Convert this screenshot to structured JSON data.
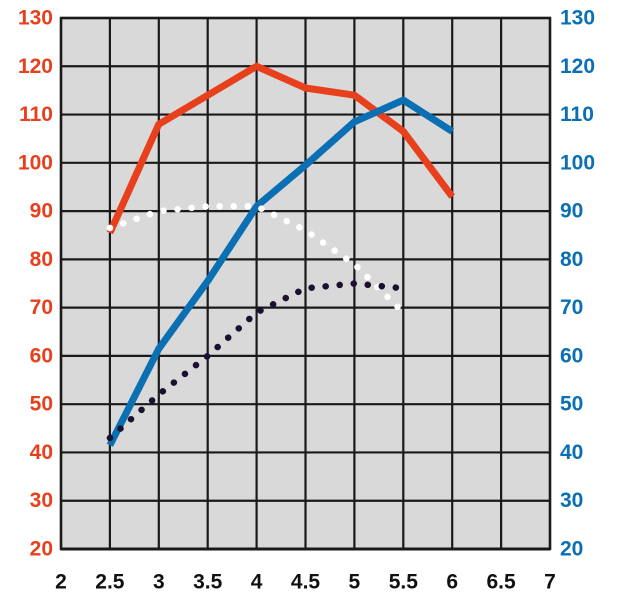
{
  "chart_data": {
    "type": "line",
    "title": "",
    "xlabel": "",
    "ylabel": "",
    "y2label": "",
    "grid": true,
    "legend": "none",
    "xlim": [
      2,
      7
    ],
    "ylim": [
      20,
      130
    ],
    "y2lim": [
      20,
      130
    ],
    "x_ticks": [
      "2",
      "2.5",
      "3",
      "3.5",
      "4",
      "4.5",
      "5",
      "5.5",
      "6",
      "6.5",
      "7"
    ],
    "y_ticks_left": [
      "20",
      "30",
      "40",
      "50",
      "60",
      "70",
      "80",
      "90",
      "100",
      "110",
      "120",
      "130"
    ],
    "y_ticks_right": [
      "20",
      "30",
      "40",
      "50",
      "60",
      "70",
      "80",
      "90",
      "100",
      "110",
      "120",
      "130"
    ],
    "colors": {
      "left_axis": "#e8401c",
      "right_axis": "#0a6fb3",
      "plot_background": "#d9d9d9",
      "grid": "#1a1a1a",
      "x_axis_text": "#111111"
    },
    "series": [
      {
        "style": "solid",
        "color": "#e8401c",
        "axis": "left",
        "x": [
          2.5,
          3,
          3.5,
          4,
          4.5,
          5,
          5.5,
          6
        ],
        "y": [
          85.5,
          108,
          114,
          120,
          115.5,
          114,
          106.5,
          93
        ]
      },
      {
        "style": "solid",
        "color": "#0a6fb3",
        "axis": "right",
        "x": [
          2.5,
          3,
          3.5,
          4,
          4.5,
          5,
          5.5,
          6
        ],
        "y": [
          41.5,
          61.5,
          75.5,
          91,
          99.5,
          108.5,
          113,
          106.5
        ]
      },
      {
        "style": "dotted",
        "color": "#ffffff",
        "axis": "left",
        "x": [
          2.5,
          3,
          3.5,
          4,
          4.5,
          5,
          5.5
        ],
        "y": [
          86.5,
          90,
          91,
          91,
          86,
          79,
          69
        ]
      },
      {
        "style": "dotted",
        "color": "#1b1030",
        "axis": "left",
        "x": [
          2.5,
          3,
          3.5,
          4,
          4.5,
          5,
          5.5
        ],
        "y": [
          43,
          52,
          60,
          69,
          74,
          75,
          74
        ]
      }
    ]
  }
}
